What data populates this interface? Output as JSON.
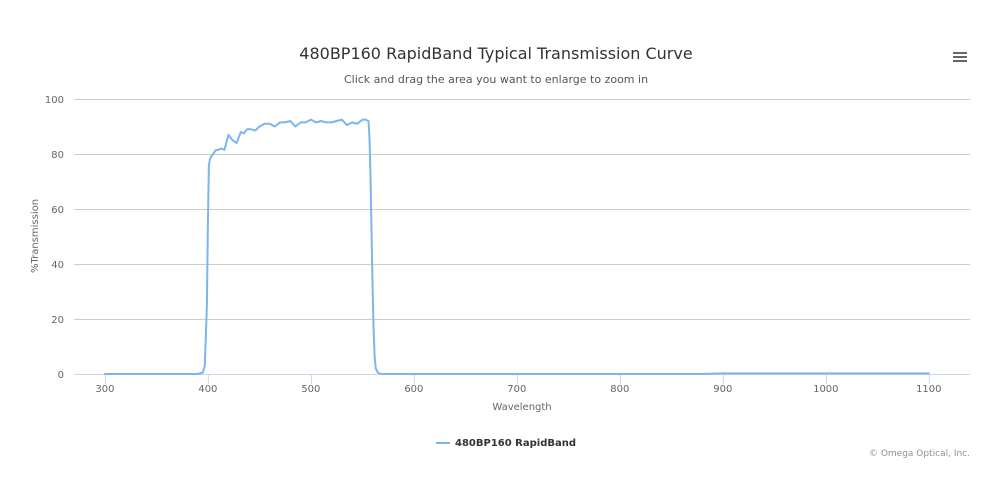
{
  "chart_data": {
    "type": "line",
    "title": "480BP160 RapidBand Typical Transmission Curve",
    "subtitle": "Click and drag the area you want to enlarge to zoom in",
    "xlabel": "Wavelength",
    "ylabel": "%Transmission",
    "xlim": [
      270,
      1140
    ],
    "ylim": [
      0,
      100
    ],
    "x_ticks": [
      300,
      400,
      500,
      600,
      700,
      800,
      900,
      1000,
      1100
    ],
    "y_ticks": [
      0,
      20,
      40,
      60,
      80,
      100
    ],
    "grid": "horizontal",
    "legend_position": "bottom-center",
    "series": [
      {
        "name": "480BP160 RapidBand",
        "color": "#7cb5ec",
        "x": [
          300,
          350,
          390,
          395,
          397,
          399,
          400,
          401,
          402,
          403,
          405,
          408,
          410,
          413,
          416,
          420,
          424,
          428,
          432,
          435,
          438,
          442,
          446,
          450,
          455,
          460,
          465,
          470,
          475,
          480,
          485,
          490,
          495,
          500,
          505,
          510,
          515,
          520,
          525,
          530,
          535,
          540,
          545,
          550,
          553,
          556,
          557,
          558,
          559,
          560,
          561,
          562,
          563,
          565,
          568,
          572,
          600,
          700,
          800,
          880,
          900,
          950,
          1000,
          1050,
          1100
        ],
        "y": [
          0,
          0,
          0,
          0.5,
          3,
          25,
          55,
          76,
          78,
          79,
          80,
          81.5,
          81.5,
          82,
          81.5,
          87,
          85,
          84,
          88,
          87.5,
          89,
          89,
          88.5,
          90,
          91,
          91,
          90,
          91.5,
          91.5,
          92,
          90,
          91.5,
          91.5,
          92.5,
          91.5,
          92,
          91.5,
          91.5,
          92,
          92.5,
          90.5,
          91.5,
          91,
          92.5,
          92.5,
          92,
          85,
          70,
          50,
          30,
          15,
          6,
          2,
          0.5,
          0,
          0,
          0,
          0,
          0,
          0,
          0.2,
          0.2,
          0.2,
          0.2,
          0.2
        ]
      }
    ]
  },
  "menu": {
    "icon": "hamburger-menu-icon"
  },
  "credits": "© Omega Optical, Inc."
}
